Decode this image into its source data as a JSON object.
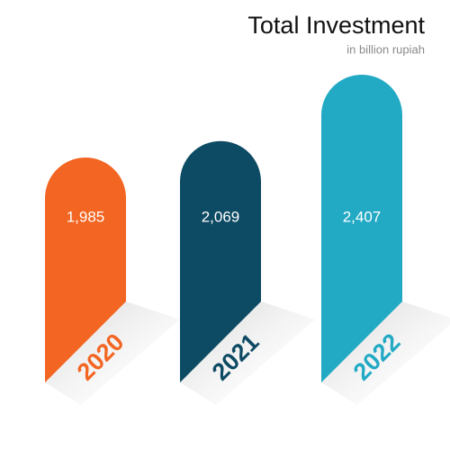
{
  "chart_data": {
    "type": "bar",
    "title": "Total Investment",
    "subtitle": "in billion rupiah",
    "categories": [
      "2020",
      "2021",
      "2022"
    ],
    "values": [
      1985,
      2069,
      2407
    ],
    "value_labels": [
      "1,985",
      "2,069",
      "2,407"
    ],
    "colors": [
      "#f26522",
      "#0d4a63",
      "#22a9c4"
    ]
  }
}
